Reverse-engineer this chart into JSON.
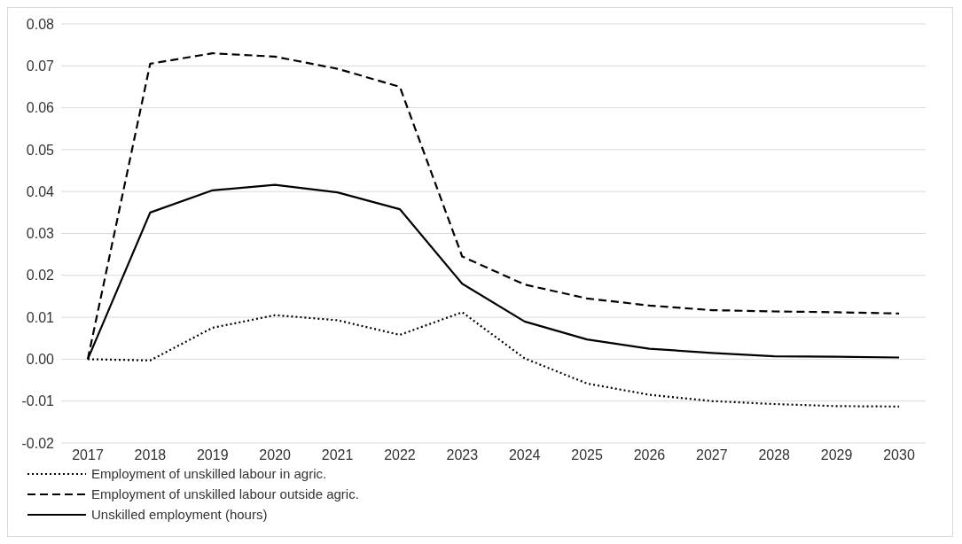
{
  "chart_data": {
    "type": "line",
    "categories": [
      "2017",
      "2018",
      "2019",
      "2020",
      "2021",
      "2022",
      "2023",
      "2024",
      "2025",
      "2026",
      "2027",
      "2028",
      "2029",
      "2030"
    ],
    "series": [
      {
        "name": "Employment of unskilled labour in agric.",
        "color": "#000000",
        "line_style": "dotted",
        "values": [
          0,
          -0.0003,
          0.0075,
          0.0105,
          0.0093,
          0.0058,
          0.0112,
          0.0002,
          -0.0058,
          -0.0085,
          -0.01,
          -0.0107,
          -0.0112,
          -0.0113
        ]
      },
      {
        "name": "Employment of unskilled labour outside agric.",
        "color": "#000000",
        "line_style": "dashed",
        "values": [
          0,
          0.0705,
          0.073,
          0.0722,
          0.0693,
          0.065,
          0.0245,
          0.0178,
          0.0145,
          0.0128,
          0.0117,
          0.0114,
          0.0112,
          0.0109
        ]
      },
      {
        "name": "Unskilled employment (hours)",
        "color": "#000000",
        "line_style": "solid",
        "values": [
          0,
          0.035,
          0.0403,
          0.0416,
          0.0398,
          0.0358,
          0.018,
          0.009,
          0.0047,
          0.0025,
          0.0015,
          0.0007,
          0.0006,
          0.0004
        ]
      }
    ],
    "ylim": [
      -0.02,
      0.08
    ],
    "yticks": [
      -0.02,
      -0.01,
      {
        "value": 0,
        "label": "0.00"
      },
      0.01,
      0.02,
      0.03,
      0.04,
      0.05,
      0.06,
      0.07,
      0.08
    ],
    "grid": "y",
    "legend": "bottom",
    "marker": "none"
  }
}
